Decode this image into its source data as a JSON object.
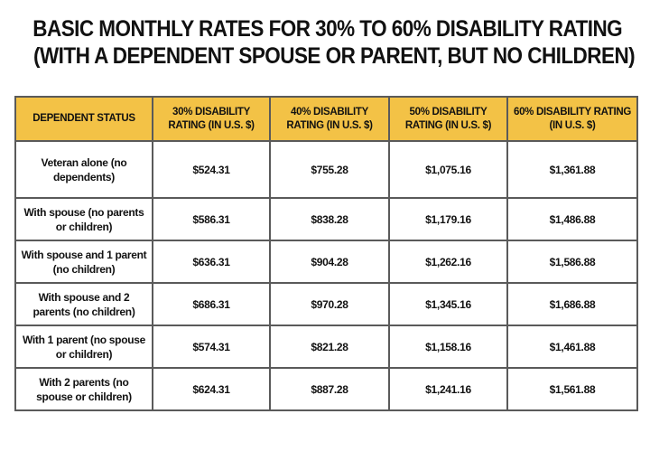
{
  "title": {
    "line1": "BASIC MONTHLY RATES FOR 30% TO 60% DISABILITY RATING",
    "line2": "(WITH A DEPENDENT SPOUSE OR PARENT, BUT NO CHILDREN)"
  },
  "table": {
    "colors": {
      "header_bg": "#f3c246",
      "border": "#5a5a5a"
    },
    "headers": [
      "DEPENDENT STATUS",
      "30% DISABILITY RATING (IN U.S. $)",
      "40% DISABILITY RATING (IN U.S. $)",
      "50% DISABILITY RATING (IN U.S. $)",
      "60% DISABILITY RATING (IN U.S. $)"
    ],
    "rows": [
      [
        "Veteran alone (no dependents)",
        "$524.31",
        "$755.28",
        "$1,075.16",
        "$1,361.88"
      ],
      [
        "With spouse (no parents or children)",
        "$586.31",
        "$838.28",
        "$1,179.16",
        "$1,486.88"
      ],
      [
        "With spouse and 1 parent (no children)",
        "$636.31",
        "$904.28",
        "$1,262.16",
        "$1,586.88"
      ],
      [
        "With spouse and 2 parents (no children)",
        "$686.31",
        "$970.28",
        "$1,345.16",
        "$1,686.88"
      ],
      [
        "With 1 parent (no spouse or children)",
        "$574.31",
        "$821.28",
        "$1,158.16",
        "$1,461.88"
      ],
      [
        "With 2 parents (no spouse or children)",
        "$624.31",
        "$887.28",
        "$1,241.16",
        "$1,561.88"
      ]
    ]
  }
}
